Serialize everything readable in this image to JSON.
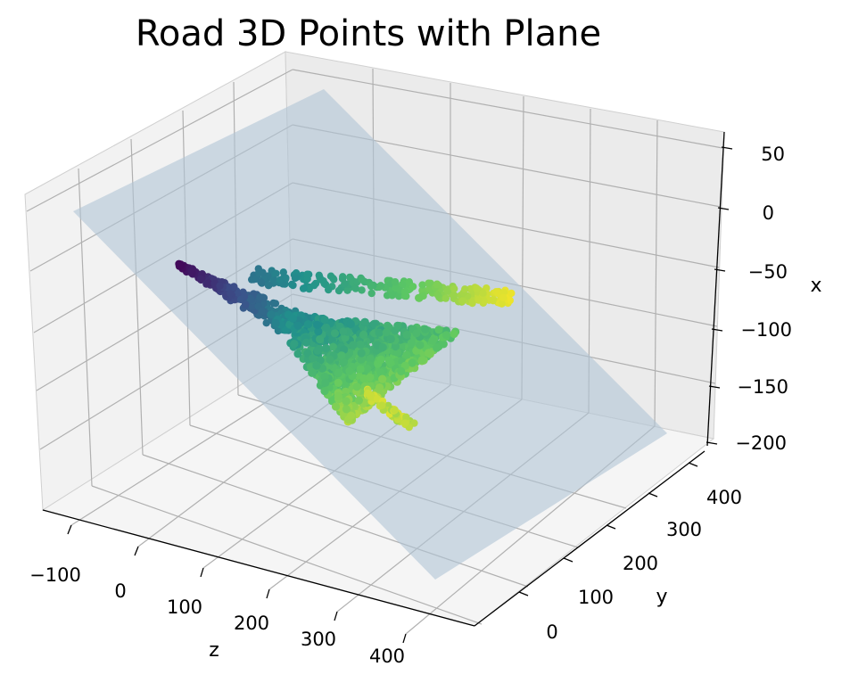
{
  "chart_data": {
    "type": "scatter",
    "projection": "3d",
    "title": "Road 3D Points with Plane",
    "axes": {
      "z": {
        "label": "z",
        "ticks": [
          -100,
          0,
          100,
          200,
          300,
          400
        ],
        "tick_labels": [
          "−100",
          "0",
          "100",
          "200",
          "300",
          "400"
        ]
      },
      "y": {
        "label": "y",
        "ticks": [
          0,
          100,
          200,
          300,
          400
        ],
        "tick_labels": [
          "0",
          "100",
          "200",
          "300",
          "400"
        ]
      },
      "x": {
        "label": "x",
        "ticks": [
          -200,
          -150,
          -100,
          -50,
          0,
          50
        ],
        "tick_labels": [
          "−200",
          "−150",
          "−100",
          "−50",
          "0",
          "50"
        ]
      }
    },
    "plane": {
      "color": "#b0c4d6",
      "opacity": 0.55
    },
    "points_colormap": "viridis",
    "point_clusters": [
      {
        "name": "",
        "samples": 60,
        "centroid": {
          "z": 60,
          "y": 130,
          "x": -45
        }
      },
      {
        "name": "",
        "samples": 50,
        "centroid": {
          "z": 165,
          "y": 265,
          "x": -60
        }
      },
      {
        "name": "",
        "samples": 200,
        "centroid": {
          "z": 170,
          "y": 150,
          "x": -115
        }
      }
    ],
    "grid": true
  }
}
